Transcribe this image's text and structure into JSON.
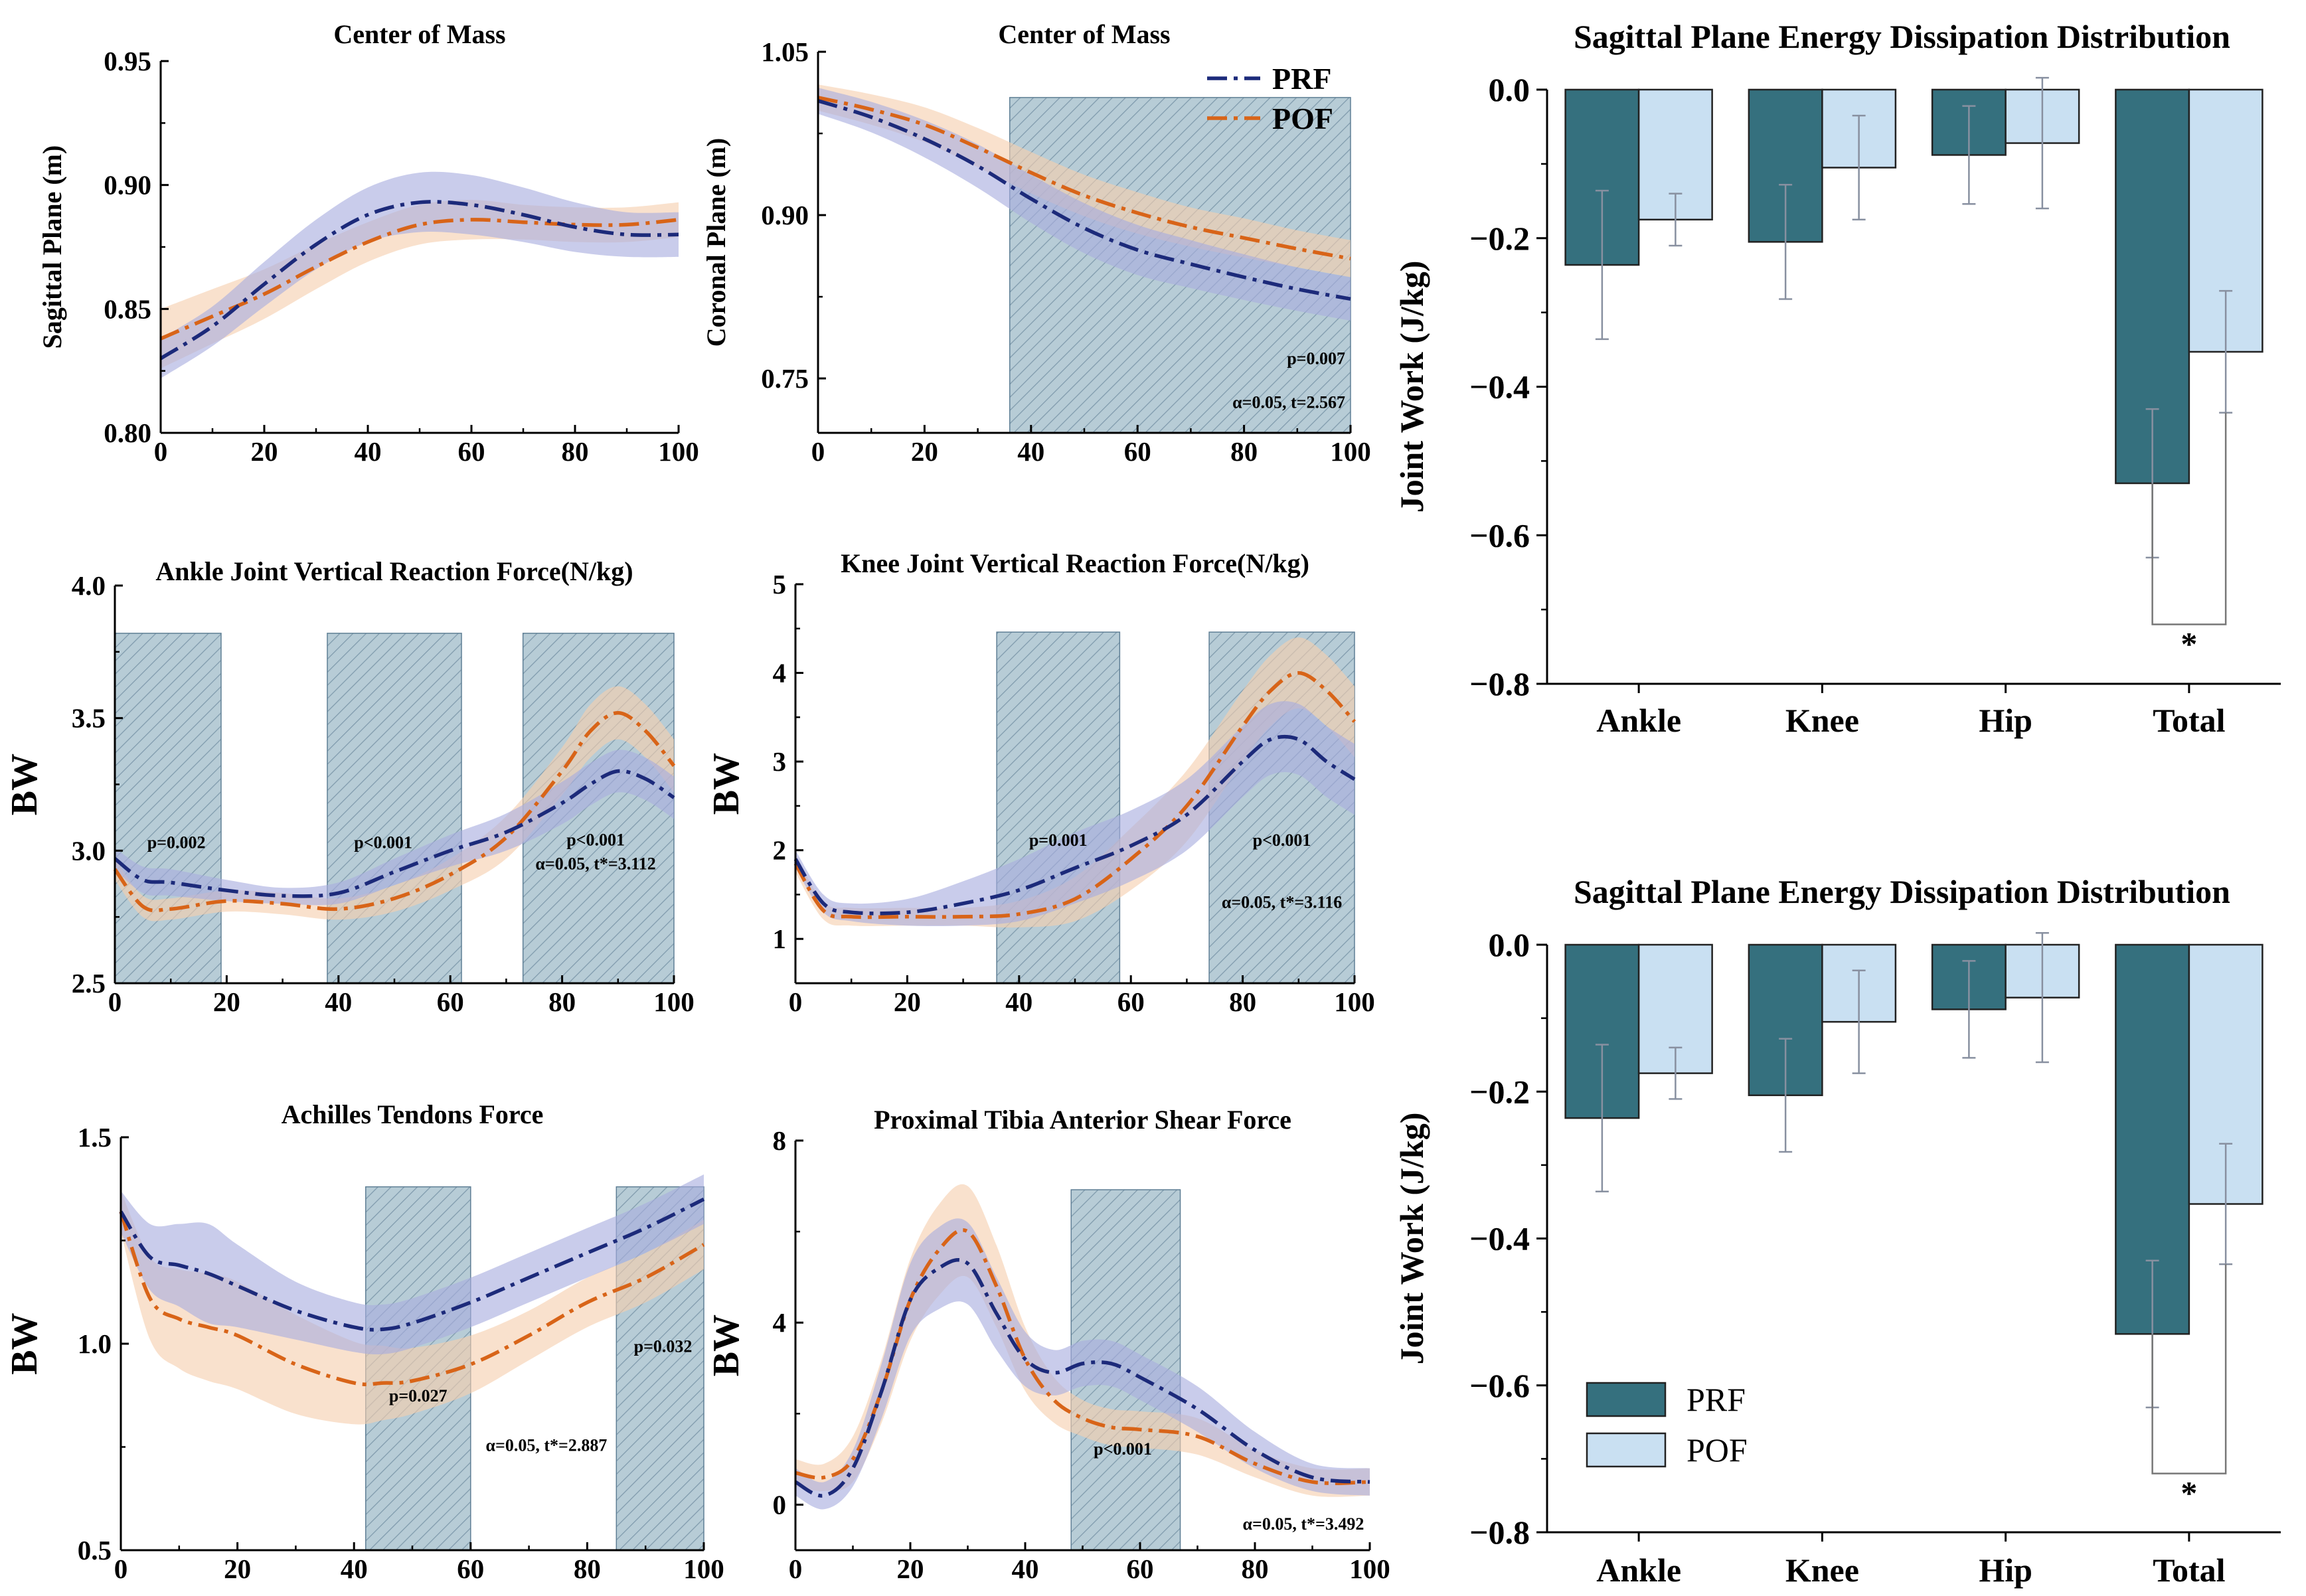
{
  "colors": {
    "prf": "#1c2a7a",
    "pof": "#d86418",
    "prf_band": "#a8acdf",
    "pof_band": "#f6cfae",
    "prf_bar": "#35707e",
    "pof_bar": "#c9e0f2",
    "region": "#b7ccd6"
  },
  "legend": {
    "prf": "PRF",
    "pof": "POF"
  },
  "chart_data": [
    {
      "id": "com-sagittal",
      "type": "line",
      "title": "Center of Mass",
      "xlabel": "",
      "ylabel": "Sagittal Plane (m)",
      "xlim": [
        0,
        100
      ],
      "ylim": [
        0.8,
        0.95
      ],
      "xticks": [
        0,
        20,
        40,
        60,
        80,
        100
      ],
      "xtick_labels": [
        "0",
        "20",
        "40",
        "60",
        "80",
        "100"
      ],
      "yticks": [
        0.8,
        0.85,
        0.9,
        0.95
      ],
      "ytick_labels": [
        "0.80",
        "0.85",
        "0.90",
        "0.95"
      ],
      "x": [
        0,
        10,
        20,
        30,
        40,
        50,
        60,
        70,
        80,
        90,
        100
      ],
      "series": [
        {
          "name": "PRF",
          "values": [
            0.83,
            0.843,
            0.86,
            0.876,
            0.888,
            0.893,
            0.892,
            0.888,
            0.883,
            0.88,
            0.88
          ],
          "sd": [
            0.008,
            0.008,
            0.009,
            0.01,
            0.011,
            0.012,
            0.012,
            0.011,
            0.01,
            0.009,
            0.009
          ]
        },
        {
          "name": "POF",
          "values": [
            0.838,
            0.847,
            0.856,
            0.867,
            0.877,
            0.884,
            0.886,
            0.885,
            0.884,
            0.884,
            0.886
          ],
          "sd": [
            0.012,
            0.011,
            0.01,
            0.009,
            0.008,
            0.008,
            0.008,
            0.007,
            0.007,
            0.007,
            0.007
          ]
        }
      ],
      "regions": [],
      "annotations": []
    },
    {
      "id": "com-coronal",
      "type": "line",
      "title": "Center of Mass",
      "xlabel": "",
      "ylabel": "Coronal Plane (m)",
      "xlim": [
        0,
        100
      ],
      "ylim": [
        0.7,
        1.05
      ],
      "xticks": [
        0,
        20,
        40,
        60,
        80,
        100
      ],
      "xtick_labels": [
        "0",
        "20",
        "40",
        "60",
        "80",
        "100"
      ],
      "yticks": [
        0.75,
        0.9,
        1.05
      ],
      "ytick_labels": [
        "0.75",
        "0.90",
        "1.05"
      ],
      "x": [
        0,
        10,
        20,
        30,
        40,
        50,
        60,
        70,
        80,
        90,
        100
      ],
      "series": [
        {
          "name": "PRF",
          "values": [
            1.005,
            0.99,
            0.97,
            0.945,
            0.915,
            0.888,
            0.868,
            0.855,
            0.843,
            0.832,
            0.823
          ],
          "sd": [
            0.012,
            0.014,
            0.017,
            0.02,
            0.022,
            0.023,
            0.023,
            0.022,
            0.021,
            0.02,
            0.02
          ]
        },
        {
          "name": "POF",
          "values": [
            1.008,
            0.997,
            0.983,
            0.962,
            0.939,
            0.918,
            0.902,
            0.889,
            0.879,
            0.869,
            0.86
          ],
          "sd": [
            0.012,
            0.014,
            0.016,
            0.018,
            0.019,
            0.019,
            0.019,
            0.018,
            0.018,
            0.017,
            0.017
          ]
        }
      ],
      "regions": [
        [
          36,
          100
        ]
      ],
      "annotations": [
        {
          "text": "p=0.007",
          "x": 99,
          "y": 0.763,
          "anchor": "end"
        },
        {
          "text": "α=0.05, t=2.567",
          "x": 99,
          "y": 0.723,
          "anchor": "end"
        }
      ]
    },
    {
      "id": "ankle-force",
      "type": "line",
      "title": "Ankle Joint Vertical Reaction Force(N/kg)",
      "xlabel": "",
      "ylabel": "BW",
      "xlim": [
        0,
        100
      ],
      "ylim": [
        2.5,
        4.0
      ],
      "xticks": [
        0,
        20,
        40,
        60,
        80,
        100
      ],
      "xtick_labels": [
        "0",
        "20",
        "40",
        "60",
        "80",
        "100"
      ],
      "yticks": [
        2.5,
        3.0,
        3.5,
        4.0
      ],
      "ytick_labels": [
        "2.5",
        "3.0",
        "3.5",
        "4.0"
      ],
      "x": [
        0,
        5,
        10,
        20,
        30,
        40,
        50,
        60,
        70,
        80,
        85,
        90,
        95,
        100
      ],
      "series": [
        {
          "name": "PRF",
          "values": [
            2.97,
            2.89,
            2.88,
            2.85,
            2.83,
            2.84,
            2.92,
            3.0,
            3.07,
            3.18,
            3.25,
            3.3,
            3.27,
            3.2
          ],
          "sd": [
            0.04,
            0.05,
            0.05,
            0.04,
            0.03,
            0.04,
            0.05,
            0.06,
            0.07,
            0.08,
            0.08,
            0.08,
            0.08,
            0.08
          ]
        },
        {
          "name": "POF",
          "values": [
            2.93,
            2.79,
            2.78,
            2.81,
            2.8,
            2.78,
            2.82,
            2.91,
            3.05,
            3.3,
            3.45,
            3.52,
            3.45,
            3.32
          ],
          "sd": [
            0.04,
            0.04,
            0.04,
            0.04,
            0.04,
            0.04,
            0.05,
            0.06,
            0.08,
            0.09,
            0.1,
            0.1,
            0.1,
            0.1
          ]
        }
      ],
      "regions": [
        [
          0,
          19
        ],
        [
          38,
          62
        ],
        [
          73,
          100
        ]
      ],
      "annotations": [
        {
          "text": "p=0.002",
          "x": 11,
          "y": 3.01,
          "anchor": "middle"
        },
        {
          "text": "p<0.001",
          "x": 48,
          "y": 3.01,
          "anchor": "middle"
        },
        {
          "text": "p<0.001",
          "x": 86,
          "y": 3.02,
          "anchor": "middle"
        },
        {
          "text": "α=0.05, t*=3.112",
          "x": 86,
          "y": 2.93,
          "anchor": "middle"
        }
      ]
    },
    {
      "id": "knee-force",
      "type": "line",
      "title": "Knee Joint Vertical Reaction Force(N/kg)",
      "xlabel": "",
      "ylabel": "BW",
      "xlim": [
        0,
        100
      ],
      "ylim": [
        0.5,
        5.0
      ],
      "xticks": [
        0,
        20,
        40,
        60,
        80,
        100
      ],
      "xtick_labels": [
        "0",
        "20",
        "40",
        "60",
        "80",
        "100"
      ],
      "yticks": [
        1,
        2,
        3,
        4,
        5
      ],
      "ytick_labels": [
        "1",
        "2",
        "3",
        "4",
        "5"
      ],
      "x": [
        0,
        5,
        10,
        20,
        30,
        40,
        50,
        60,
        70,
        80,
        85,
        90,
        95,
        100
      ],
      "series": [
        {
          "name": "PRF",
          "values": [
            1.9,
            1.4,
            1.3,
            1.3,
            1.4,
            1.55,
            1.8,
            2.05,
            2.4,
            3.0,
            3.25,
            3.25,
            3.0,
            2.8
          ],
          "sd": [
            0.1,
            0.1,
            0.1,
            0.15,
            0.25,
            0.35,
            0.4,
            0.4,
            0.4,
            0.4,
            0.4,
            0.4,
            0.4,
            0.4
          ]
        },
        {
          "name": "POF",
          "values": [
            1.85,
            1.32,
            1.25,
            1.25,
            1.25,
            1.28,
            1.45,
            1.9,
            2.5,
            3.4,
            3.8,
            4.0,
            3.8,
            3.45
          ],
          "sd": [
            0.1,
            0.1,
            0.1,
            0.1,
            0.1,
            0.15,
            0.25,
            0.35,
            0.4,
            0.4,
            0.4,
            0.4,
            0.4,
            0.4
          ]
        }
      ],
      "regions": [
        [
          36,
          58
        ],
        [
          74,
          100
        ]
      ],
      "annotations": [
        {
          "text": "p=0.001",
          "x": 47,
          "y": 2.05,
          "anchor": "middle"
        },
        {
          "text": "p<0.001",
          "x": 87,
          "y": 2.05,
          "anchor": "middle"
        },
        {
          "text": "α=0.05, t*=3.116",
          "x": 87,
          "y": 1.35,
          "anchor": "middle"
        }
      ]
    },
    {
      "id": "achilles-force",
      "type": "line",
      "title": "Achilles Tendons Force",
      "xlabel": "",
      "ylabel": "BW",
      "xlim": [
        0,
        100
      ],
      "ylim": [
        0.5,
        1.5
      ],
      "xticks": [
        0,
        20,
        40,
        60,
        80,
        100
      ],
      "xtick_labels": [
        "0",
        "20",
        "40",
        "60",
        "80",
        "100"
      ],
      "yticks": [
        0.5,
        1.0,
        1.5
      ],
      "ytick_labels": [
        "0.5",
        "1.0",
        "1.5"
      ],
      "x": [
        0,
        5,
        10,
        15,
        20,
        30,
        40,
        45,
        50,
        60,
        70,
        80,
        90,
        100
      ],
      "series": [
        {
          "name": "PRF",
          "values": [
            1.32,
            1.21,
            1.19,
            1.17,
            1.14,
            1.08,
            1.04,
            1.035,
            1.05,
            1.1,
            1.16,
            1.22,
            1.28,
            1.35
          ],
          "sd": [
            0.05,
            0.08,
            0.1,
            0.12,
            0.1,
            0.07,
            0.06,
            0.06,
            0.06,
            0.06,
            0.06,
            0.06,
            0.06,
            0.06
          ]
        },
        {
          "name": "POF",
          "values": [
            1.32,
            1.11,
            1.06,
            1.04,
            1.02,
            0.95,
            0.905,
            0.905,
            0.91,
            0.95,
            1.02,
            1.1,
            1.16,
            1.24
          ],
          "sd": [
            0.05,
            0.1,
            0.12,
            0.13,
            0.13,
            0.12,
            0.1,
            0.09,
            0.08,
            0.07,
            0.06,
            0.06,
            0.06,
            0.06
          ]
        }
      ],
      "regions": [
        [
          42,
          60
        ],
        [
          85,
          100
        ]
      ],
      "annotations": [
        {
          "text": "p=0.027",
          "x": 51,
          "y": 0.86,
          "anchor": "middle"
        },
        {
          "text": "p=0.032",
          "x": 93,
          "y": 0.98,
          "anchor": "middle"
        },
        {
          "text": "α=0.05, t*=2.887",
          "x": 73,
          "y": 0.74,
          "anchor": "middle"
        }
      ]
    },
    {
      "id": "tibia-shear",
      "type": "line",
      "title": "Proximal Tibia Anterior Shear Force",
      "xlabel": "",
      "ylabel": "BW",
      "xlim": [
        0,
        100
      ],
      "ylim": [
        -1,
        8
      ],
      "xticks": [
        0,
        20,
        40,
        60,
        80,
        100
      ],
      "xtick_labels": [
        "0",
        "20",
        "40",
        "60",
        "80",
        "100"
      ],
      "yticks": [
        0,
        4,
        8
      ],
      "ytick_labels": [
        "0",
        "4",
        "8"
      ],
      "x": [
        0,
        5,
        10,
        15,
        20,
        25,
        30,
        35,
        40,
        45,
        50,
        55,
        60,
        70,
        80,
        90,
        100
      ],
      "series": [
        {
          "name": "PRF",
          "values": [
            0.5,
            0.2,
            0.8,
            2.5,
            4.5,
            5.2,
            5.3,
            4.2,
            3.2,
            2.9,
            3.1,
            3.1,
            2.8,
            2.1,
            1.2,
            0.6,
            0.5
          ],
          "sd": [
            0.3,
            0.3,
            0.4,
            0.6,
            0.8,
            0.9,
            0.9,
            0.8,
            0.6,
            0.5,
            0.5,
            0.5,
            0.5,
            0.5,
            0.4,
            0.3,
            0.3
          ]
        },
        {
          "name": "POF",
          "values": [
            0.7,
            0.6,
            1.0,
            2.5,
            4.5,
            5.6,
            6.0,
            4.8,
            3.2,
            2.3,
            1.9,
            1.7,
            1.65,
            1.5,
            0.9,
            0.5,
            0.5
          ],
          "sd": [
            0.3,
            0.3,
            0.5,
            0.7,
            0.9,
            1.0,
            1.0,
            0.9,
            0.7,
            0.5,
            0.4,
            0.4,
            0.4,
            0.4,
            0.3,
            0.3,
            0.3
          ]
        }
      ],
      "regions": [
        [
          48,
          67
        ]
      ],
      "annotations": [
        {
          "text": "p<0.001",
          "x": 57,
          "y": 1.1,
          "anchor": "middle"
        },
        {
          "text": "α=0.05, t*=3.492",
          "x": 99,
          "y": -0.55,
          "anchor": "end"
        }
      ]
    },
    {
      "id": "energy-top",
      "type": "bar",
      "title": "Sagittal Plane Energy Dissipation Distribution",
      "xlabel": "",
      "ylabel": "Joint Work (J/kg)",
      "categories": [
        "Ankle",
        "Knee",
        "Hip",
        "Total"
      ],
      "ylim": [
        -0.8,
        0.0
      ],
      "yticks": [
        0.0,
        -0.2,
        -0.4,
        -0.6,
        -0.8
      ],
      "ytick_labels": [
        "0.0",
        "−0.2",
        "−0.4",
        "−0.6",
        "−0.8"
      ],
      "series": [
        {
          "name": "PRF",
          "values": [
            -0.236,
            -0.205,
            -0.088,
            -0.53
          ],
          "err": [
            0.1,
            0.077,
            0.066,
            0.1
          ]
        },
        {
          "name": "POF",
          "values": [
            -0.175,
            -0.105,
            -0.072,
            -0.353
          ],
          "err": [
            0.035,
            0.07,
            0.088,
            0.082
          ]
        }
      ],
      "significance": {
        "category": "Total",
        "label": "*",
        "y": -0.72
      },
      "show_legend": false
    },
    {
      "id": "energy-bottom",
      "type": "bar",
      "title": "Sagittal Plane Energy Dissipation Distribution",
      "xlabel": "",
      "ylabel": "Joint Work (J/kg)",
      "categories": [
        "Ankle",
        "Knee",
        "Hip",
        "Total"
      ],
      "ylim": [
        -0.8,
        0.0
      ],
      "yticks": [
        0.0,
        -0.2,
        -0.4,
        -0.6,
        -0.8
      ],
      "ytick_labels": [
        "0.0",
        "−0.2",
        "−0.4",
        "−0.6",
        "−0.8"
      ],
      "series": [
        {
          "name": "PRF",
          "values": [
            -0.236,
            -0.205,
            -0.088,
            -0.53
          ],
          "err": [
            0.1,
            0.077,
            0.066,
            0.1
          ]
        },
        {
          "name": "POF",
          "values": [
            -0.175,
            -0.105,
            -0.072,
            -0.353
          ],
          "err": [
            0.035,
            0.07,
            0.088,
            0.082
          ]
        }
      ],
      "significance": {
        "category": "Total",
        "label": "*",
        "y": -0.72
      },
      "show_legend": true
    }
  ]
}
